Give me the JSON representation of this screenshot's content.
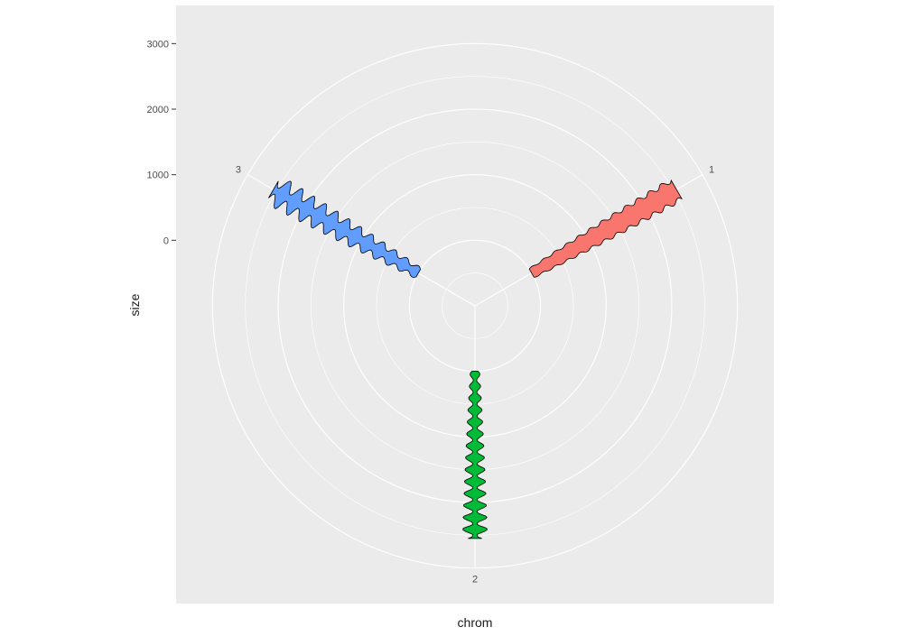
{
  "chart_data": {
    "type": "area",
    "coord": "polar",
    "xlabel": "chrom",
    "ylabel": "size",
    "y_ticks": [
      0,
      1000,
      2000,
      3000
    ],
    "ylim": [
      -1000,
      3500
    ],
    "theta_labels": [
      "1",
      "2",
      "3"
    ],
    "grid": true,
    "legend": "none",
    "colors": {
      "panel": "#ebebeb",
      "grid": "#ffffff",
      "outline": "#000000"
    },
    "series": [
      {
        "name": "1",
        "color": "#F8766D",
        "y_start": 0,
        "y_end": 2550,
        "half_width_deg": 2.6,
        "wave_amp_deg": 0.6,
        "waves": 12
      },
      {
        "name": "2",
        "color": "#00BA38",
        "y_start": 0,
        "y_end": 2550,
        "half_width_deg": 1.7,
        "wave_amp_deg": 1.4,
        "waves": 14
      },
      {
        "name": "3",
        "color": "#619CFF",
        "y_start": 0,
        "y_end": 2550,
        "half_width_deg": 2.4,
        "wave_amp_deg": 1.6,
        "waves": 12
      }
    ]
  }
}
